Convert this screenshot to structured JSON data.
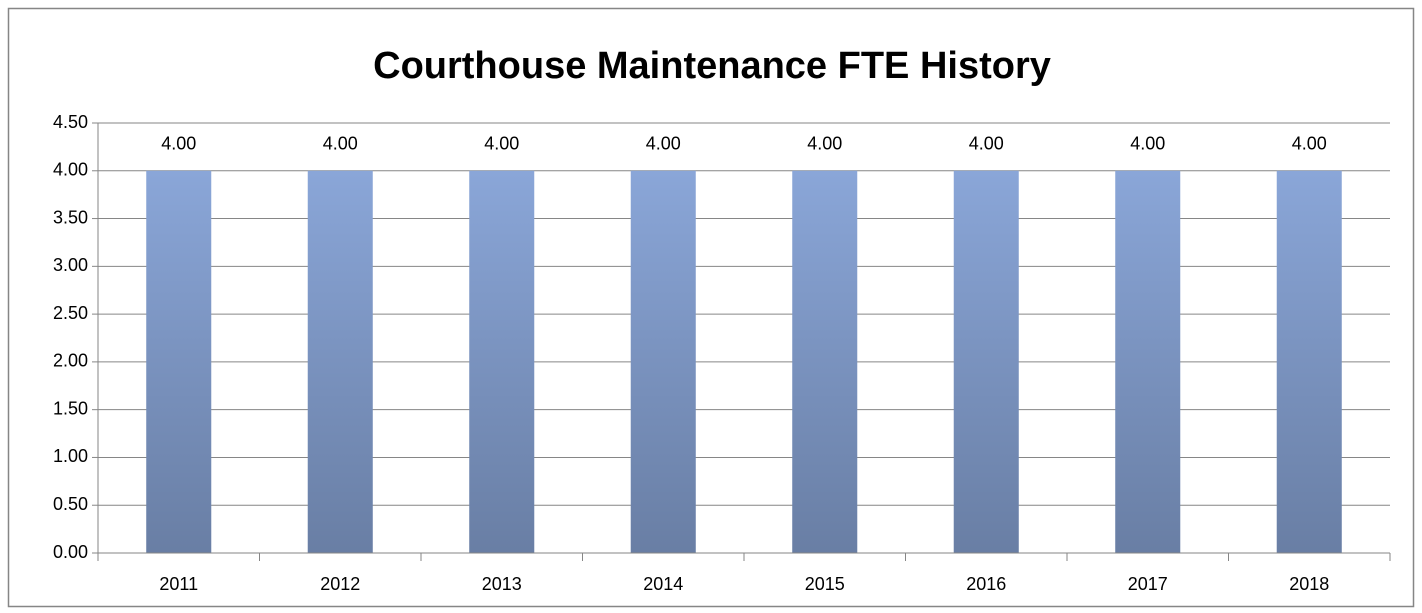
{
  "chart_data": {
    "type": "bar",
    "title": "Courthouse Maintenance FTE History",
    "categories": [
      "2011",
      "2012",
      "2013",
      "2014",
      "2015",
      "2016",
      "2017",
      "2018"
    ],
    "values": [
      4,
      4,
      4,
      4,
      4,
      4,
      4,
      4
    ],
    "value_labels": [
      "4.00",
      "4.00",
      "4.00",
      "4.00",
      "4.00",
      "4.00",
      "4.00",
      "4.00"
    ],
    "color": "#8aa6d8",
    "ylim": [
      0,
      4.5
    ],
    "yticks": [
      {
        "value": 0,
        "label": "0.00"
      },
      {
        "value": 0.5,
        "label": "0.50"
      },
      {
        "value": 1,
        "label": "1.00"
      },
      {
        "value": 1.5,
        "label": "1.50"
      },
      {
        "value": 2,
        "label": "2.00"
      },
      {
        "value": 2.5,
        "label": "2.50"
      },
      {
        "value": 3,
        "label": "3.00"
      },
      {
        "value": 3.5,
        "label": "3.50"
      },
      {
        "value": 4,
        "label": "4.00"
      },
      {
        "value": 4.5,
        "label": "4.50"
      }
    ],
    "grid": true
  }
}
